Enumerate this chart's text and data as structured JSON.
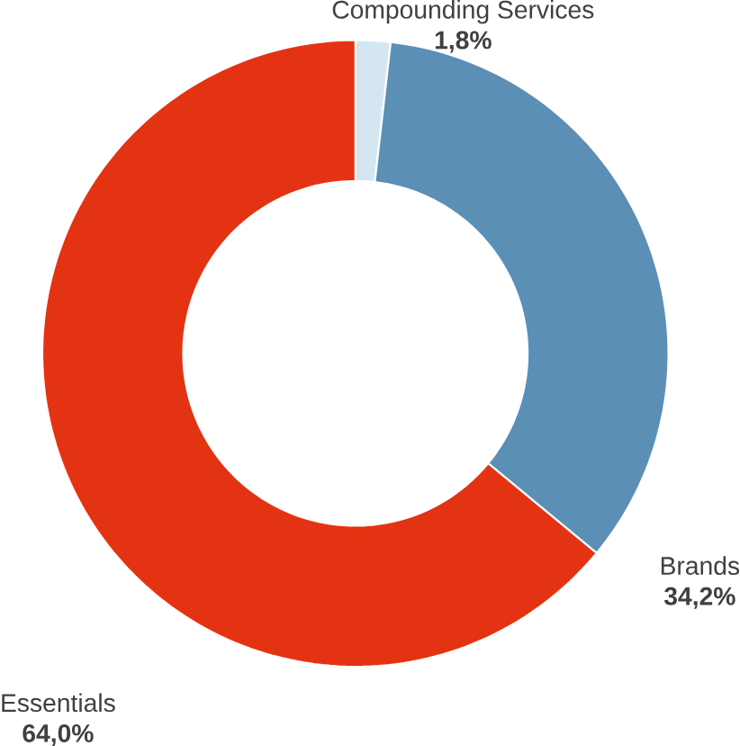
{
  "chart_data": {
    "type": "donut",
    "categories": [
      "Compounding Services",
      "Brands",
      "Essentials"
    ],
    "values": [
      1.8,
      34.2,
      64.0
    ],
    "value_labels": [
      "1,8%",
      "34,2%",
      "64,0%"
    ],
    "colors": [
      "#d5e6f3",
      "#5b8fb6",
      "#e43312"
    ]
  }
}
